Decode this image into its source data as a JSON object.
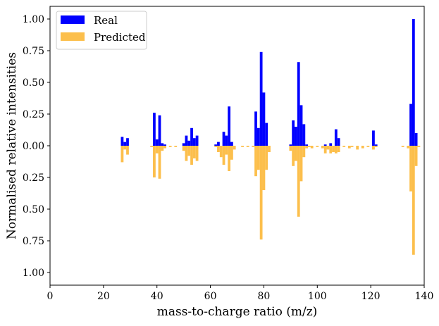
{
  "colors": {
    "real": "#0000ff",
    "predicted": "#fcbf4c",
    "frame": "#000000"
  },
  "chart_data": {
    "type": "bar",
    "title": "",
    "xlabel": "mass-to-charge ratio (m/z)",
    "ylabel": "Normalised relative intensities",
    "xlim": [
      0,
      140
    ],
    "ylim": [
      -1.1,
      1.1
    ],
    "xticks": [
      0,
      20,
      40,
      60,
      80,
      100,
      120,
      140
    ],
    "yticks": [
      {
        "value": 1.0,
        "label": "1.00"
      },
      {
        "value": 0.75,
        "label": "0.75"
      },
      {
        "value": 0.5,
        "label": "0.50"
      },
      {
        "value": 0.25,
        "label": "0.25"
      },
      {
        "value": 0.0,
        "label": "0.00"
      },
      {
        "value": -0.25,
        "label": "0.25"
      },
      {
        "value": -0.5,
        "label": "0.50"
      },
      {
        "value": -0.75,
        "label": "0.75"
      },
      {
        "value": -1.0,
        "label": "1.00"
      }
    ],
    "legend": {
      "position": "top-left"
    },
    "series": [
      {
        "name": "Real",
        "direction": "up",
        "points": [
          [
            27,
            0.07
          ],
          [
            28,
            0.03
          ],
          [
            29,
            0.06
          ],
          [
            39,
            0.26
          ],
          [
            40,
            0.05
          ],
          [
            41,
            0.24
          ],
          [
            42,
            0.02
          ],
          [
            43,
            0.01
          ],
          [
            50,
            0.02
          ],
          [
            51,
            0.08
          ],
          [
            52,
            0.04
          ],
          [
            53,
            0.14
          ],
          [
            54,
            0.06
          ],
          [
            55,
            0.08
          ],
          [
            62,
            0.01
          ],
          [
            63,
            0.03
          ],
          [
            65,
            0.11
          ],
          [
            66,
            0.08
          ],
          [
            67,
            0.31
          ],
          [
            68,
            0.03
          ],
          [
            77,
            0.27
          ],
          [
            78,
            0.14
          ],
          [
            79,
            0.74
          ],
          [
            80,
            0.42
          ],
          [
            81,
            0.18
          ],
          [
            90,
            0.01
          ],
          [
            91,
            0.2
          ],
          [
            92,
            0.15
          ],
          [
            93,
            0.66
          ],
          [
            94,
            0.32
          ],
          [
            95,
            0.17
          ],
          [
            96,
            0.01
          ],
          [
            103,
            0.01
          ],
          [
            105,
            0.02
          ],
          [
            107,
            0.13
          ],
          [
            108,
            0.06
          ],
          [
            121,
            0.12
          ],
          [
            122,
            0.01
          ],
          [
            135,
            0.33
          ],
          [
            136,
            1.0
          ],
          [
            137,
            0.1
          ]
        ]
      },
      {
        "name": "Predicted",
        "direction": "down",
        "points": [
          [
            27,
            0.13
          ],
          [
            28,
            0.03
          ],
          [
            29,
            0.07
          ],
          [
            38,
            0.01
          ],
          [
            39,
            0.25
          ],
          [
            40,
            0.06
          ],
          [
            41,
            0.26
          ],
          [
            42,
            0.04
          ],
          [
            43,
            0.02
          ],
          [
            45,
            0.01
          ],
          [
            47,
            0.01
          ],
          [
            50,
            0.04
          ],
          [
            51,
            0.12
          ],
          [
            52,
            0.08
          ],
          [
            53,
            0.15
          ],
          [
            54,
            0.1
          ],
          [
            55,
            0.12
          ],
          [
            62,
            0.01
          ],
          [
            63,
            0.05
          ],
          [
            64,
            0.09
          ],
          [
            65,
            0.15
          ],
          [
            66,
            0.07
          ],
          [
            67,
            0.2
          ],
          [
            68,
            0.11
          ],
          [
            69,
            0.03
          ],
          [
            72,
            0.01
          ],
          [
            74,
            0.01
          ],
          [
            76,
            0.01
          ],
          [
            77,
            0.24
          ],
          [
            78,
            0.19
          ],
          [
            79,
            0.74
          ],
          [
            80,
            0.35
          ],
          [
            81,
            0.19
          ],
          [
            82,
            0.05
          ],
          [
            90,
            0.04
          ],
          [
            91,
            0.16
          ],
          [
            92,
            0.12
          ],
          [
            93,
            0.56
          ],
          [
            94,
            0.28
          ],
          [
            95,
            0.09
          ],
          [
            96,
            0.02
          ],
          [
            97,
            0.01
          ],
          [
            98,
            0.02
          ],
          [
            100,
            0.01
          ],
          [
            102,
            0.02
          ],
          [
            103,
            0.06
          ],
          [
            104,
            0.03
          ],
          [
            105,
            0.06
          ],
          [
            106,
            0.05
          ],
          [
            107,
            0.06
          ],
          [
            108,
            0.05
          ],
          [
            110,
            0.01
          ],
          [
            112,
            0.02
          ],
          [
            113,
            0.01
          ],
          [
            115,
            0.03
          ],
          [
            117,
            0.02
          ],
          [
            119,
            0.01
          ],
          [
            121,
            0.03
          ],
          [
            122,
            0.01
          ],
          [
            132,
            0.01
          ],
          [
            134,
            0.02
          ],
          [
            135,
            0.36
          ],
          [
            136,
            0.86
          ],
          [
            137,
            0.16
          ],
          [
            138,
            0.01
          ]
        ]
      }
    ]
  }
}
